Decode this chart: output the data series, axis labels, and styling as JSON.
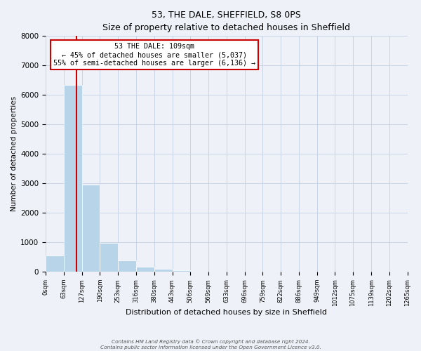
{
  "title": "53, THE DALE, SHEFFIELD, S8 0PS",
  "subtitle": "Size of property relative to detached houses in Sheffield",
  "xlabel": "Distribution of detached houses by size in Sheffield",
  "ylabel": "Number of detached properties",
  "bar_values": [
    550,
    6350,
    2950,
    975,
    375,
    175,
    100,
    50,
    0,
    0,
    0,
    0,
    0,
    0,
    0,
    0,
    0,
    0,
    0,
    0
  ],
  "bar_edges": [
    0,
    63,
    127,
    190,
    253,
    316,
    380,
    443,
    506,
    569,
    633,
    696,
    759,
    822,
    886,
    949,
    1012,
    1075,
    1139,
    1202,
    1265
  ],
  "x_tick_labels": [
    "0sqm",
    "63sqm",
    "127sqm",
    "190sqm",
    "253sqm",
    "316sqm",
    "380sqm",
    "443sqm",
    "506sqm",
    "569sqm",
    "633sqm",
    "696sqm",
    "759sqm",
    "822sqm",
    "886sqm",
    "949sqm",
    "1012sqm",
    "1075sqm",
    "1139sqm",
    "1202sqm",
    "1265sqm"
  ],
  "ylim": [
    0,
    8000
  ],
  "yticks": [
    0,
    1000,
    2000,
    3000,
    4000,
    5000,
    6000,
    7000,
    8000
  ],
  "bar_color": "#b8d4e8",
  "bar_edge_color": "#ffffff",
  "property_line_x": 109,
  "annotation_title": "53 THE DALE: 109sqm",
  "annotation_line1": "← 45% of detached houses are smaller (5,037)",
  "annotation_line2": "55% of semi-detached houses are larger (6,136) →",
  "annotation_box_color": "#ffffff",
  "annotation_box_edge_color": "#cc0000",
  "property_line_color": "#cc0000",
  "grid_color": "#c8d4e4",
  "background_color": "#eef2f8",
  "footer_line1": "Contains HM Land Registry data © Crown copyright and database right 2024.",
  "footer_line2": "Contains public sector information licensed under the Open Government Licence v3.0."
}
